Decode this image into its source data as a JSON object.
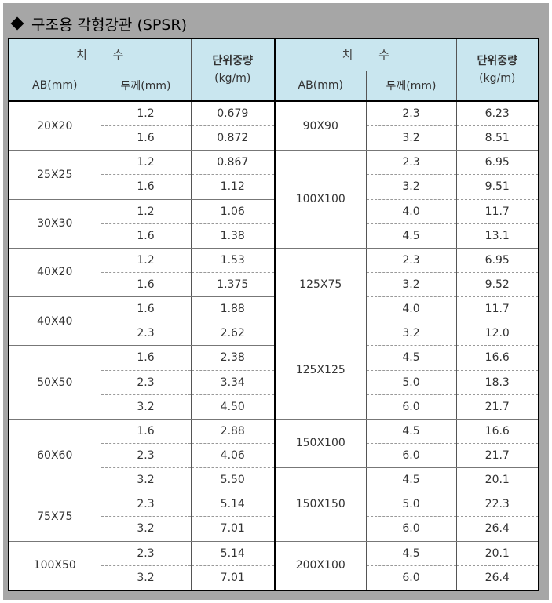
{
  "title": "구조용 각형강관 (SPSR)",
  "header": {
    "dimension": "치 수",
    "unit_weight": "단위중량",
    "unit": "(kg/m)",
    "ab": "AB(mm)",
    "thickness": "두께(mm)"
  },
  "left": [
    {
      "ab": "20X20",
      "rows": [
        [
          "1.2",
          "0.679"
        ],
        [
          "1.6",
          "0.872"
        ]
      ]
    },
    {
      "ab": "25X25",
      "rows": [
        [
          "1.2",
          "0.867"
        ],
        [
          "1.6",
          "1.12"
        ]
      ]
    },
    {
      "ab": "30X30",
      "rows": [
        [
          "1.2",
          "1.06"
        ],
        [
          "1.6",
          "1.38"
        ]
      ]
    },
    {
      "ab": "40X20",
      "rows": [
        [
          "1.2",
          "1.53"
        ],
        [
          "1.6",
          "1.375"
        ]
      ]
    },
    {
      "ab": "40X40",
      "rows": [
        [
          "1.6",
          "1.88"
        ],
        [
          "2.3",
          "2.62"
        ]
      ]
    },
    {
      "ab": "50X50",
      "rows": [
        [
          "1.6",
          "2.38"
        ],
        [
          "2.3",
          "3.34"
        ],
        [
          "3.2",
          "4.50"
        ]
      ]
    },
    {
      "ab": "60X60",
      "rows": [
        [
          "1.6",
          "2.88"
        ],
        [
          "2.3",
          "4.06"
        ],
        [
          "3.2",
          "5.50"
        ]
      ]
    },
    {
      "ab": "75X75",
      "rows": [
        [
          "2.3",
          "5.14"
        ],
        [
          "3.2",
          "7.01"
        ]
      ]
    },
    {
      "ab": "100X50",
      "rows": [
        [
          "2.3",
          "5.14"
        ],
        [
          "3.2",
          "7.01"
        ]
      ]
    }
  ],
  "right": [
    {
      "ab": "90X90",
      "rows": [
        [
          "2.3",
          "6.23"
        ],
        [
          "3.2",
          "8.51"
        ]
      ]
    },
    {
      "ab": "100X100",
      "rows": [
        [
          "2.3",
          "6.95"
        ],
        [
          "3.2",
          "9.51"
        ],
        [
          "4.0",
          "11.7"
        ],
        [
          "4.5",
          "13.1"
        ]
      ]
    },
    {
      "ab": "125X75",
      "rows": [
        [
          "2.3",
          "6.95"
        ],
        [
          "3.2",
          "9.52"
        ],
        [
          "4.0",
          "11.7"
        ]
      ]
    },
    {
      "ab": "125X125",
      "rows": [
        [
          "3.2",
          "12.0"
        ],
        [
          "4.5",
          "16.6"
        ],
        [
          "5.0",
          "18.3"
        ],
        [
          "6.0",
          "21.7"
        ]
      ]
    },
    {
      "ab": "150X100",
      "rows": [
        [
          "4.5",
          "16.6"
        ],
        [
          "6.0",
          "21.7"
        ]
      ]
    },
    {
      "ab": "150X150",
      "rows": [
        [
          "4.5",
          "20.1"
        ],
        [
          "5.0",
          "22.3"
        ],
        [
          "6.0",
          "26.4"
        ]
      ]
    },
    {
      "ab": "200X100",
      "rows": [
        [
          "4.5",
          "20.1"
        ],
        [
          "6.0",
          "26.4"
        ]
      ]
    }
  ]
}
